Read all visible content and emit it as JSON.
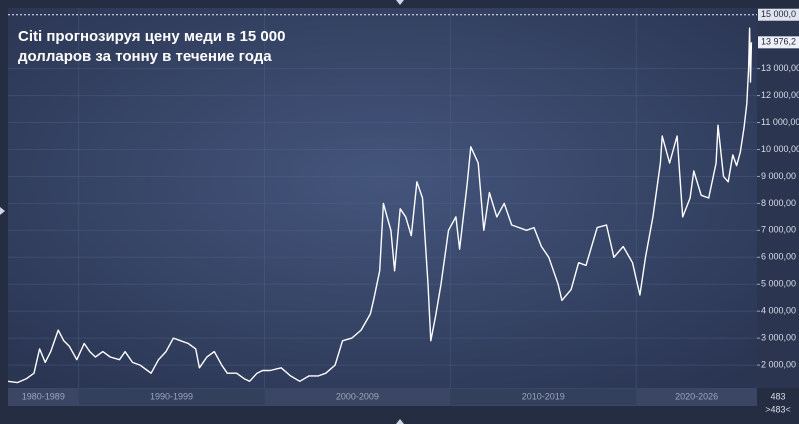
{
  "chart_data": {
    "type": "line",
    "title_lines": [
      "Citi прогнозируя цену меди в 15 000",
      "долларов за тонну в течение года"
    ],
    "x": [
      1986.2,
      1986.7,
      1987.2,
      1987.6,
      1987.9,
      1988.2,
      1988.5,
      1988.9,
      1989.2,
      1989.5,
      1989.9,
      1990.3,
      1990.6,
      1990.9,
      1991.3,
      1991.7,
      1992.2,
      1992.5,
      1992.9,
      1993.3,
      1993.7,
      1993.9,
      1994.3,
      1994.7,
      1995.1,
      1995.5,
      1995.9,
      1996.3,
      1996.5,
      1996.9,
      1997.3,
      1997.7,
      1998.0,
      1998.5,
      1998.9,
      1999.2,
      1999.6,
      1999.9,
      2000.3,
      2000.9,
      2001.4,
      2001.9,
      2002.4,
      2002.9,
      2003.3,
      2003.8,
      2004.2,
      2004.7,
      2005.2,
      2005.7,
      2005.9,
      2006.2,
      2006.4,
      2006.6,
      2006.8,
      2007.0,
      2007.3,
      2007.6,
      2007.9,
      2008.2,
      2008.5,
      2008.8,
      2008.95,
      2009.2,
      2009.5,
      2009.9,
      2010.3,
      2010.5,
      2010.9,
      2011.1,
      2011.5,
      2011.8,
      2012.1,
      2012.5,
      2012.9,
      2013.3,
      2013.7,
      2014.1,
      2014.5,
      2014.9,
      2015.3,
      2015.8,
      2016.0,
      2016.5,
      2016.9,
      2017.3,
      2017.9,
      2018.4,
      2018.8,
      2019.3,
      2019.8,
      2020.2,
      2020.5,
      2020.9,
      2021.3,
      2021.4,
      2021.8,
      2022.2,
      2022.5,
      2022.9,
      2023.1,
      2023.5,
      2023.9,
      2024.3,
      2024.4,
      2024.7,
      2024.95,
      2025.2,
      2025.4,
      2025.6,
      2025.8,
      2025.95,
      2026.05,
      2026.1,
      2026.15,
      2026.2
    ],
    "values": [
      1400,
      1350,
      1500,
      1700,
      2600,
      2100,
      2500,
      3300,
      2900,
      2700,
      2200,
      2800,
      2500,
      2300,
      2500,
      2300,
      2200,
      2500,
      2100,
      2000,
      1800,
      1700,
      2200,
      2500,
      3000,
      2900,
      2800,
      2600,
      1900,
      2300,
      2500,
      2000,
      1700,
      1700,
      1500,
      1400,
      1700,
      1800,
      1800,
      1900,
      1600,
      1400,
      1600,
      1600,
      1700,
      2000,
      2900,
      3000,
      3300,
      3900,
      4500,
      5500,
      8000,
      7500,
      7000,
      5500,
      7800,
      7500,
      6800,
      8800,
      8200,
      5000,
      2900,
      3800,
      5000,
      7000,
      7500,
      6300,
      8700,
      10100,
      9500,
      7000,
      8400,
      7500,
      8000,
      7200,
      7100,
      7000,
      7100,
      6400,
      6000,
      5000,
      4400,
      4800,
      5800,
      5700,
      7100,
      7200,
      6000,
      6400,
      5800,
      4600,
      6000,
      7500,
      9500,
      10500,
      9500,
      10500,
      7500,
      8200,
      9200,
      8300,
      8200,
      9500,
      10900,
      9000,
      8800,
      9800,
      9400,
      9900,
      10800,
      11700,
      13000,
      14500,
      12500,
      13976.2
    ],
    "color": "#ffffff",
    "xlim": [
      1986.2,
      2026.5
    ],
    "xticks": [
      {
        "value": 1980,
        "label": "1980-1989"
      },
      {
        "value": 1990,
        "label": "1990-1999"
      },
      {
        "value": 2000,
        "label": "2000-2009"
      },
      {
        "value": 2010,
        "label": "2010-2019"
      },
      {
        "value": 2020,
        "label": "2020-2026"
      }
    ],
    "ylim": [
      1150,
      15250
    ],
    "yticks": [
      {
        "value": 2000,
        "label": "2 000,00"
      },
      {
        "value": 3000,
        "label": "3 000,00"
      },
      {
        "value": 4000,
        "label": "4 000,00"
      },
      {
        "value": 5000,
        "label": "5 000,00"
      },
      {
        "value": 6000,
        "label": "6 000,00"
      },
      {
        "value": 7000,
        "label": "7 000,00"
      },
      {
        "value": 8000,
        "label": "8 000,00"
      },
      {
        "value": 9000,
        "label": "9 000,00"
      },
      {
        "value": 10000,
        "label": "10 000,00"
      },
      {
        "value": 11000,
        "label": "11 000,00"
      },
      {
        "value": 12000,
        "label": "12 000,00"
      },
      {
        "value": 13000,
        "label": "13 000,00"
      }
    ],
    "reference_line": {
      "value": 15000,
      "label": "15 000,0"
    },
    "last_value": {
      "value": 13976.2,
      "label": "13 976,2"
    },
    "corner_labels": [
      "483",
      ">483<"
    ],
    "grid": true
  }
}
